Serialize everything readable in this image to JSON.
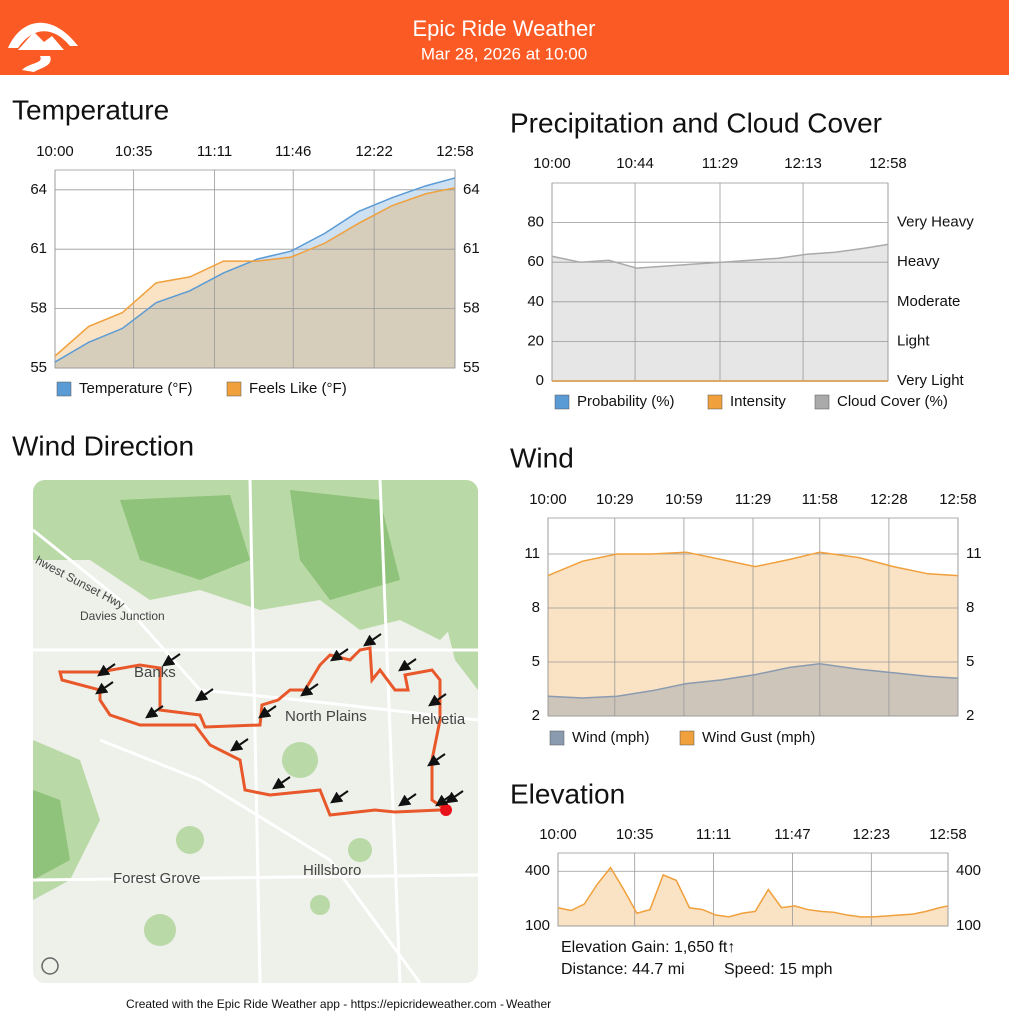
{
  "header": {
    "title": "Epic Ride Weather",
    "subtitle": "Mar 28, 2026 at 10:00"
  },
  "chart_data": [
    {
      "type": "area",
      "title": "Temperature",
      "grid": true,
      "mirror_yticks": true,
      "legend": "bottom",
      "x": [
        0,
        15,
        30,
        45,
        60,
        75,
        90,
        105,
        120,
        135,
        150,
        165,
        178
      ],
      "xlim": [
        0,
        178
      ],
      "xticks": [
        {
          "value": 0,
          "label": "10:00"
        },
        {
          "value": 35,
          "label": "10:35"
        },
        {
          "value": 71,
          "label": "11:11"
        },
        {
          "value": 106,
          "label": "11:46"
        },
        {
          "value": 142,
          "label": "12:22"
        },
        {
          "value": 178,
          "label": "12:58"
        }
      ],
      "ylim": [
        55,
        65
      ],
      "yticks": [
        55,
        58,
        61,
        64
      ],
      "series": [
        {
          "name": "Temperature (°F)",
          "color": "#5b9bd5",
          "values": [
            55.3,
            56.3,
            57.0,
            58.3,
            58.9,
            59.8,
            60.5,
            60.9,
            61.8,
            62.9,
            63.6,
            64.2,
            64.6
          ]
        },
        {
          "name": "Feels Like (°F)",
          "color": "#f0a03c",
          "values": [
            55.6,
            57.1,
            57.8,
            59.3,
            59.6,
            60.4,
            60.4,
            60.6,
            61.3,
            62.3,
            63.2,
            63.8,
            64.1
          ]
        }
      ]
    },
    {
      "type": "area",
      "title": "Precipitation and Cloud Cover",
      "grid": true,
      "legend": "bottom",
      "x": [
        0,
        15,
        30,
        45,
        60,
        75,
        90,
        105,
        120,
        135,
        150,
        165,
        178
      ],
      "xlim": [
        0,
        178
      ],
      "xticks": [
        {
          "value": 0,
          "label": "10:00"
        },
        {
          "value": 44,
          "label": "10:44"
        },
        {
          "value": 89,
          "label": "11:29"
        },
        {
          "value": 133,
          "label": "12:13"
        },
        {
          "value": 178,
          "label": "12:58"
        }
      ],
      "ylim": [
        0,
        100
      ],
      "yticks": [
        0,
        20,
        40,
        60,
        80
      ],
      "y2ticks": [
        {
          "value": 0,
          "label": "Very Light"
        },
        {
          "value": 20,
          "label": "Light"
        },
        {
          "value": 40,
          "label": "Moderate"
        },
        {
          "value": 60,
          "label": "Heavy"
        },
        {
          "value": 80,
          "label": "Very Heavy"
        }
      ],
      "series": [
        {
          "name": "Probability (%)",
          "color": "#5b9bd5",
          "values": [
            0,
            0,
            0,
            0,
            0,
            0,
            0,
            0,
            0,
            0,
            0,
            0,
            0
          ]
        },
        {
          "name": "Intensity",
          "color": "#f0a03c",
          "axis": "y2",
          "values": [
            0,
            0,
            0,
            0,
            0,
            0,
            0,
            0,
            0,
            0,
            0,
            0,
            0
          ]
        },
        {
          "name": "Cloud Cover (%)",
          "color": "#aaaaaa",
          "values": [
            63,
            60,
            61,
            57,
            58,
            59,
            60,
            61,
            62,
            64,
            65,
            67,
            69
          ]
        }
      ]
    },
    {
      "type": "area",
      "title": "Wind",
      "grid": true,
      "mirror_yticks": true,
      "legend": "bottom",
      "x": [
        0,
        15,
        30,
        45,
        60,
        75,
        90,
        105,
        118,
        135,
        150,
        165,
        178
      ],
      "xlim": [
        0,
        178
      ],
      "xticks": [
        {
          "value": 0,
          "label": "10:00"
        },
        {
          "value": 29,
          "label": "10:29"
        },
        {
          "value": 59,
          "label": "10:59"
        },
        {
          "value": 89,
          "label": "11:29"
        },
        {
          "value": 118,
          "label": "11:58"
        },
        {
          "value": 148,
          "label": "12:28"
        },
        {
          "value": 178,
          "label": "12:58"
        }
      ],
      "ylim": [
        2,
        13
      ],
      "yticks": [
        2,
        5,
        8,
        11
      ],
      "series": [
        {
          "name": "Wind (mph)",
          "color": "#8a9bb0",
          "values": [
            3.1,
            3.0,
            3.1,
            3.4,
            3.8,
            4.0,
            4.3,
            4.7,
            4.9,
            4.6,
            4.4,
            4.2,
            4.1
          ]
        },
        {
          "name": "Wind Gust (mph)",
          "color": "#f0a03c",
          "values": [
            9.8,
            10.6,
            11.0,
            11.0,
            11.1,
            10.7,
            10.3,
            10.7,
            11.1,
            10.8,
            10.3,
            9.9,
            9.8
          ]
        }
      ]
    },
    {
      "type": "area",
      "title": "Elevation",
      "grid": true,
      "mirror_yticks": true,
      "x": [
        0,
        6,
        12,
        18,
        24,
        30,
        36,
        42,
        48,
        54,
        60,
        66,
        72,
        78,
        84,
        90,
        96,
        102,
        108,
        114,
        120,
        126,
        132,
        138,
        144,
        150,
        156,
        162,
        168,
        174,
        178
      ],
      "xlim": [
        0,
        178
      ],
      "xticks": [
        {
          "value": 0,
          "label": "10:00"
        },
        {
          "value": 35,
          "label": "10:35"
        },
        {
          "value": 71,
          "label": "11:11"
        },
        {
          "value": 107,
          "label": "11:47"
        },
        {
          "value": 143,
          "label": "12:23"
        },
        {
          "value": 178,
          "label": "12:58"
        }
      ],
      "ylim": [
        100,
        500
      ],
      "yticks": [
        100,
        400
      ],
      "series": [
        {
          "name": "Elevation",
          "color": "#f0a03c",
          "values": [
            200,
            185,
            220,
            330,
            420,
            300,
            170,
            190,
            380,
            350,
            200,
            190,
            160,
            150,
            170,
            180,
            300,
            200,
            210,
            190,
            180,
            175,
            160,
            150,
            150,
            155,
            160,
            165,
            180,
            200,
            210
          ]
        }
      ],
      "annotations": [
        "Elevation Gain: 1,650 ft↑",
        "Distance: 44.7 mi",
        "Speed: 15 mph"
      ]
    }
  ],
  "map": {
    "title": "Wind Direction",
    "labels": [
      "hwest Sunset Hwy",
      "Davies Junction",
      "Banks",
      "North Plains",
      "Helvetia",
      "Forest Grove",
      "Hillsboro"
    ]
  },
  "footer": {
    "text": "Created with the Epic Ride Weather app - https://epicrideweather.com - ",
    "brand": "Weather"
  }
}
